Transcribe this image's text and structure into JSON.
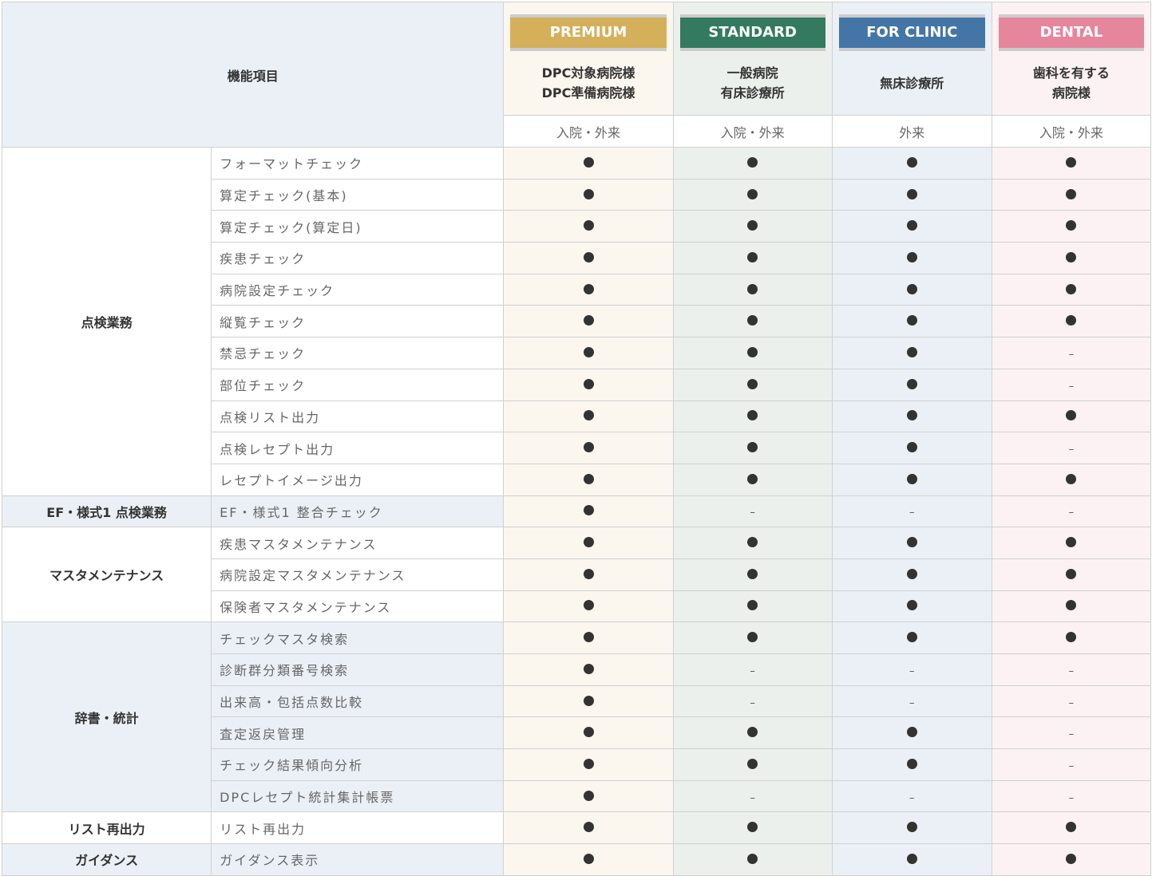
{
  "header": {
    "feature_label": "機能項目"
  },
  "plans": [
    {
      "name": "PREMIUM",
      "desc": [
        "DPC対象病院様",
        "DPC準備病院様"
      ],
      "scope": "入院・外来",
      "color": "#d4b05a",
      "bg": "#fbf7ef"
    },
    {
      "name": "STANDARD",
      "desc": [
        "一般病院",
        "有床診療所"
      ],
      "scope": "入院・外来",
      "color": "#337a60",
      "bg": "#ebf0ed"
    },
    {
      "name": "FOR CLINIC",
      "desc": [
        "無床診療所"
      ],
      "scope": "外来",
      "color": "#4375a6",
      "bg": "#ebf0f7"
    },
    {
      "name": "DENTAL",
      "desc": [
        "歯科を有する",
        "病院様"
      ],
      "scope": "入院・外来",
      "color": "#e5869d",
      "bg": "#fdf2f3"
    }
  ],
  "legend": {
    "available": "●",
    "unavailable": "–"
  },
  "groups": [
    {
      "name": "点検業務",
      "bg": "#ffffff",
      "rows": [
        {
          "feature": "フォーマットチェック",
          "marks": [
            "●",
            "●",
            "●",
            "●"
          ]
        },
        {
          "feature": "算定チェック(基本)",
          "marks": [
            "●",
            "●",
            "●",
            "●"
          ]
        },
        {
          "feature": "算定チェック(算定日)",
          "marks": [
            "●",
            "●",
            "●",
            "●"
          ]
        },
        {
          "feature": "疾患チェック",
          "marks": [
            "●",
            "●",
            "●",
            "●"
          ]
        },
        {
          "feature": "病院設定チェック",
          "marks": [
            "●",
            "●",
            "●",
            "●"
          ]
        },
        {
          "feature": "縦覧チェック",
          "marks": [
            "●",
            "●",
            "●",
            "●"
          ]
        },
        {
          "feature": "禁忌チェック",
          "marks": [
            "●",
            "●",
            "●",
            "–"
          ]
        },
        {
          "feature": "部位チェック",
          "marks": [
            "●",
            "●",
            "●",
            "–"
          ]
        },
        {
          "feature": "点検リスト出力",
          "marks": [
            "●",
            "●",
            "●",
            "●"
          ]
        },
        {
          "feature": "点検レセプト出力",
          "marks": [
            "●",
            "●",
            "●",
            "–"
          ]
        },
        {
          "feature": "レセプトイメージ出力",
          "marks": [
            "●",
            "●",
            "●",
            "●"
          ]
        }
      ]
    },
    {
      "name": "EF・様式1 点検業務",
      "bg": "#ebf0f7",
      "rows": [
        {
          "feature": "EF・様式1 整合チェック",
          "marks": [
            "●",
            "–",
            "–",
            "–"
          ]
        }
      ]
    },
    {
      "name": "マスタメンテナンス",
      "bg": "#ffffff",
      "rows": [
        {
          "feature": "疾患マスタメンテナンス",
          "marks": [
            "●",
            "●",
            "●",
            "●"
          ]
        },
        {
          "feature": "病院設定マスタメンテナンス",
          "marks": [
            "●",
            "●",
            "●",
            "●"
          ]
        },
        {
          "feature": "保険者マスタメンテナンス",
          "marks": [
            "●",
            "●",
            "●",
            "●"
          ]
        }
      ]
    },
    {
      "name": "辞書・統計",
      "bg": "#ebf0f7",
      "rows": [
        {
          "feature": "チェックマスタ検索",
          "marks": [
            "●",
            "●",
            "●",
            "●"
          ]
        },
        {
          "feature": "診断群分類番号検索",
          "marks": [
            "●",
            "–",
            "–",
            "–"
          ]
        },
        {
          "feature": "出来高・包括点数比較",
          "marks": [
            "●",
            "–",
            "–",
            "–"
          ]
        },
        {
          "feature": "査定返戻管理",
          "marks": [
            "●",
            "●",
            "●",
            "–"
          ]
        },
        {
          "feature": "チェック結果傾向分析",
          "marks": [
            "●",
            "●",
            "●",
            "–"
          ]
        },
        {
          "feature": "DPCレセプト統計集計帳票",
          "marks": [
            "●",
            "–",
            "–",
            "–"
          ]
        }
      ]
    },
    {
      "name": "リスト再出力",
      "bg": "#ffffff",
      "rows": [
        {
          "feature": "リスト再出力",
          "marks": [
            "●",
            "●",
            "●",
            "●"
          ]
        }
      ]
    },
    {
      "name": "ガイダンス",
      "bg": "#ebf0f7",
      "rows": [
        {
          "feature": "ガイダンス表示",
          "marks": [
            "●",
            "●",
            "●",
            "●"
          ]
        }
      ]
    }
  ]
}
